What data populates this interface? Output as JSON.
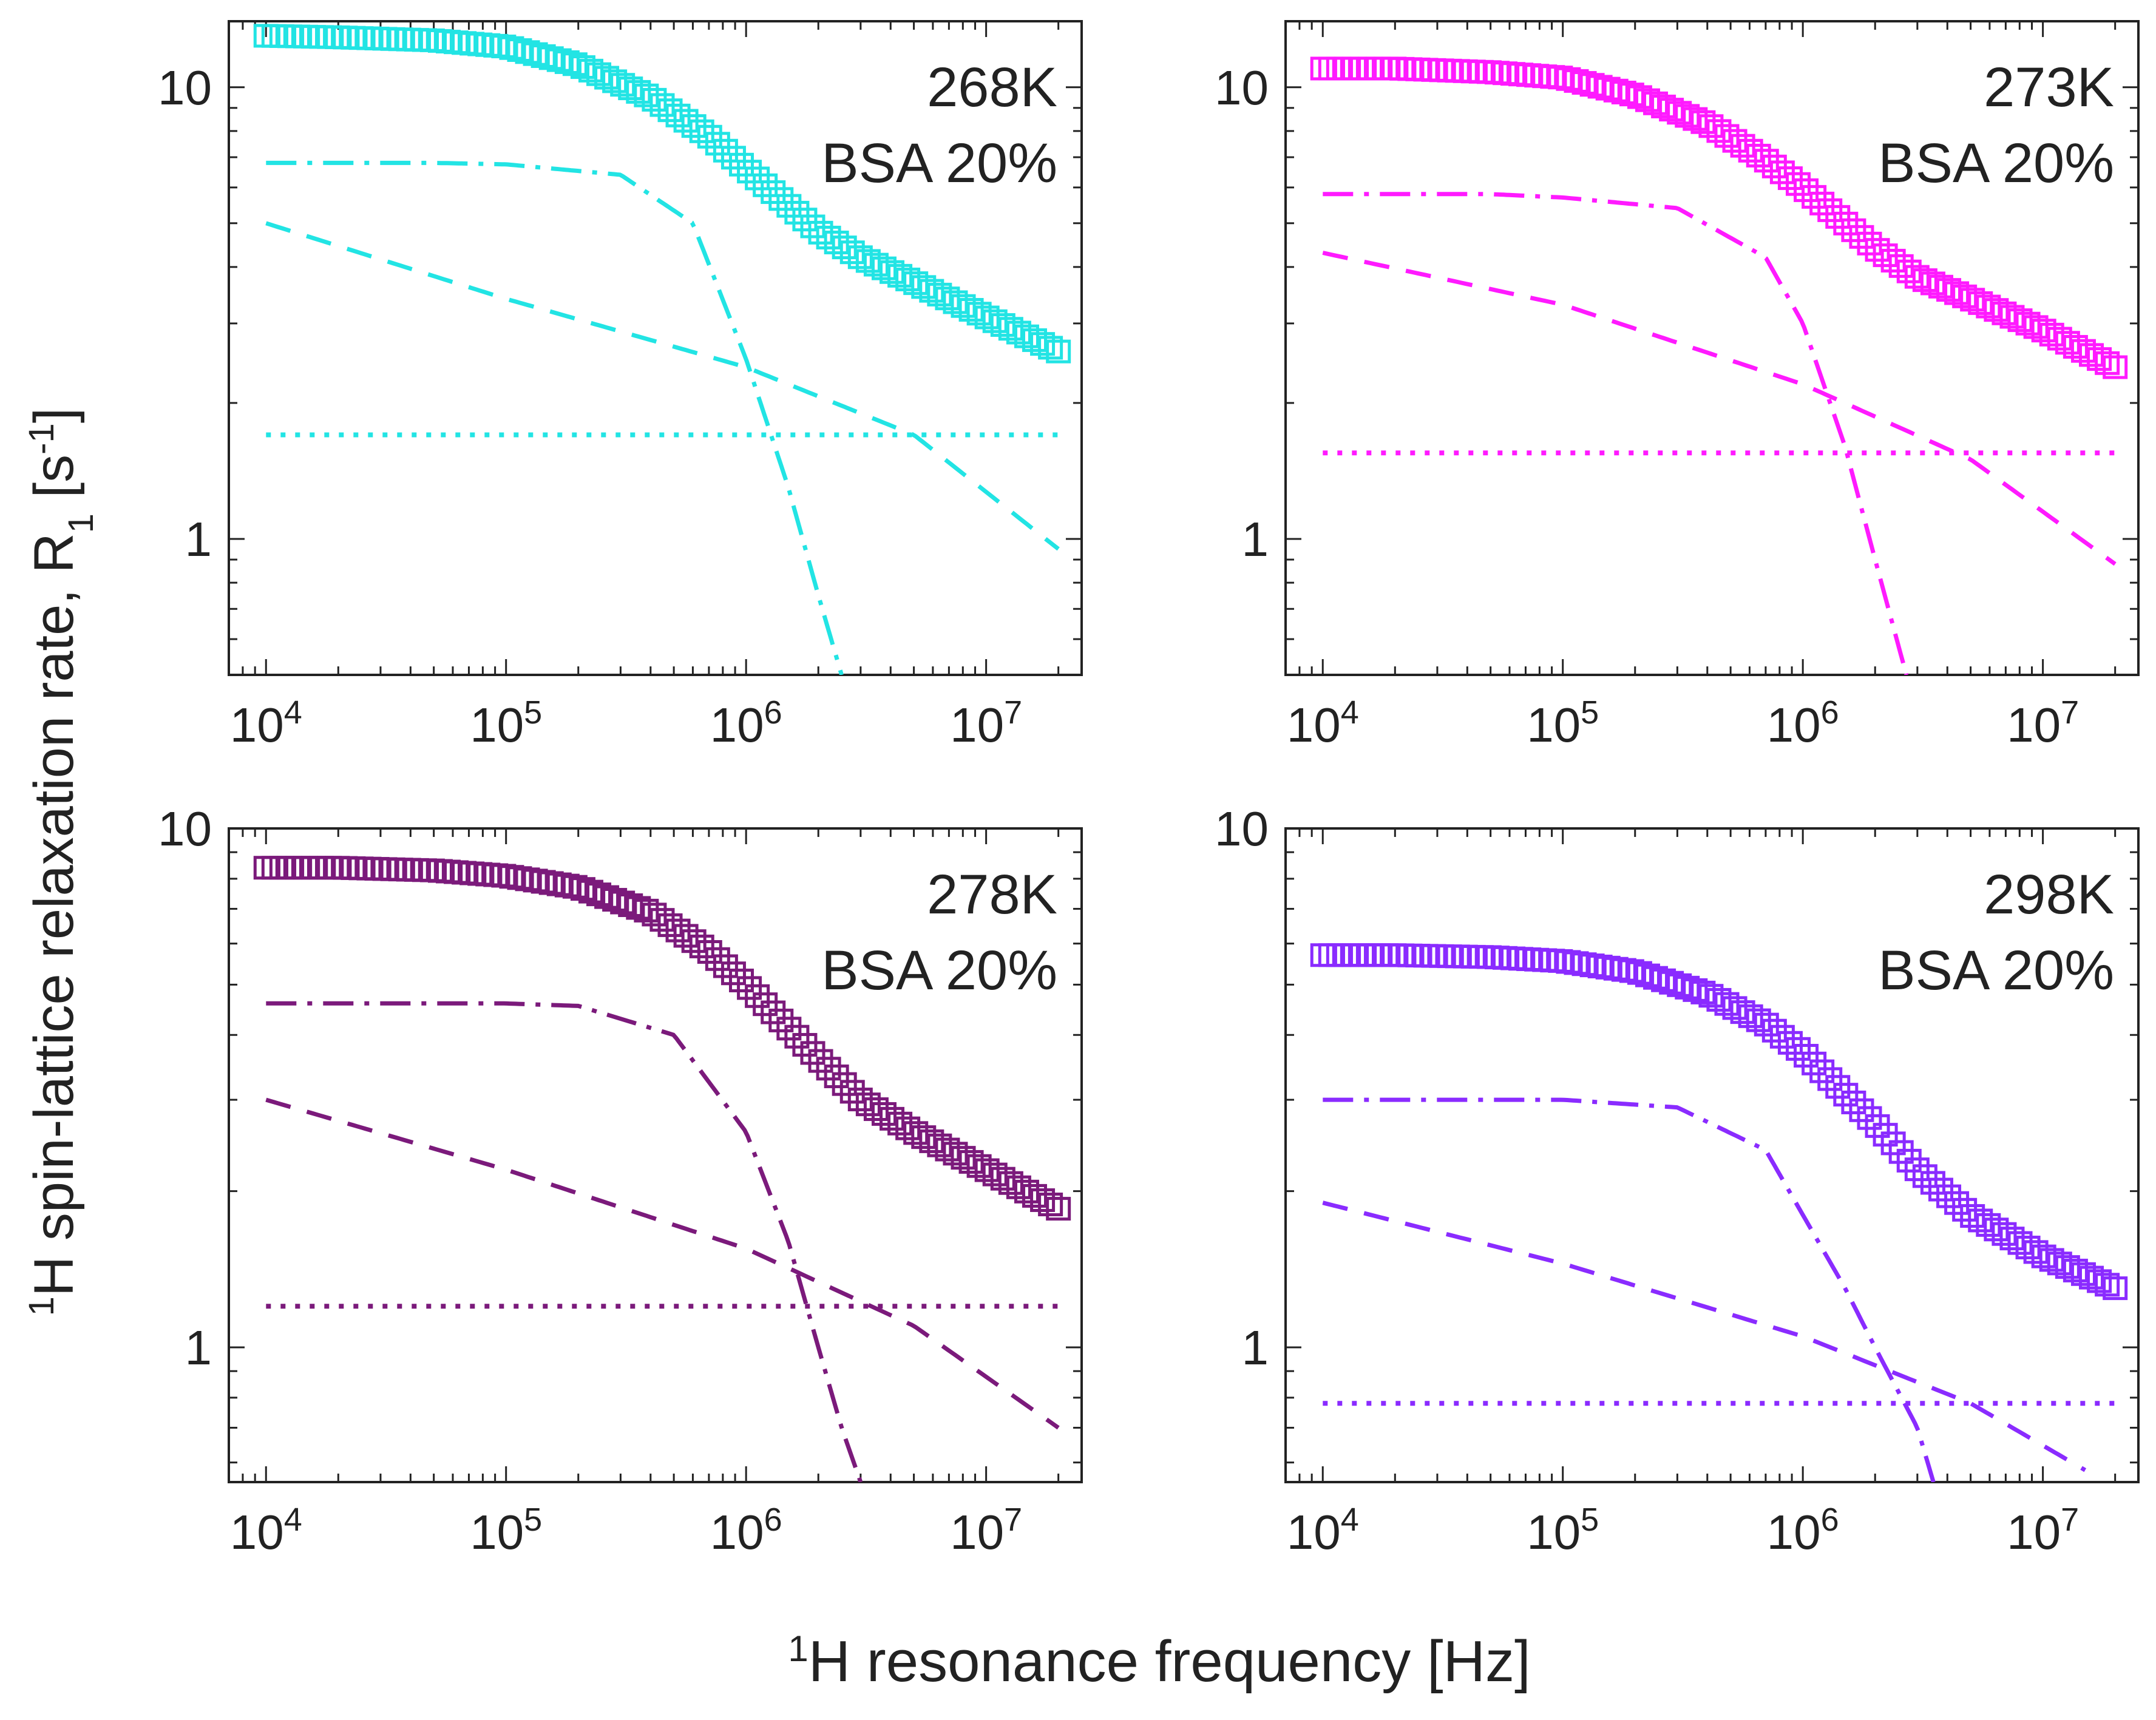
{
  "figure": {
    "ylabel": {
      "sup": "1",
      "main": "H spin-lattice relaxation rate, R",
      "sub": "1",
      "unit_open": " [s",
      "unit_sup": "-1",
      "unit_close": "]"
    },
    "xlabel": {
      "sup": "1",
      "main": "H resonance frequency [Hz]"
    },
    "axis_color": "#222222"
  },
  "chart_data": [
    {
      "type": "line",
      "title": "",
      "xlabel": "",
      "ylabel": "",
      "annotation": [
        "268K",
        "BSA 20%"
      ],
      "color": "#22e4e4",
      "xscale": "log",
      "yscale": "log",
      "xlim": [
        7000,
        25000000
      ],
      "ylim": [
        0.5,
        14
      ],
      "xticks": [
        {
          "base": "10",
          "exp": "4",
          "v": 10000
        },
        {
          "base": "10",
          "exp": "5",
          "v": 100000
        },
        {
          "base": "10",
          "exp": "6",
          "v": 1000000
        },
        {
          "base": "10",
          "exp": "7",
          "v": 10000000
        }
      ],
      "yticks": [
        {
          "label": "1",
          "v": 1
        },
        {
          "label": "10",
          "v": 10
        }
      ],
      "series": [
        {
          "style": "squares",
          "points": [
            [
              10000,
              13.0
            ],
            [
              20000,
              12.9
            ],
            [
              50000,
              12.7
            ],
            [
              100000,
              12.3
            ],
            [
              200000,
              11.2
            ],
            [
              400000,
              9.5
            ],
            [
              700000,
              7.8
            ],
            [
              1000000,
              6.6
            ],
            [
              2000000,
              4.8
            ],
            [
              3000000,
              4.2
            ],
            [
              5000000,
              3.7
            ],
            [
              10000000,
              3.1
            ],
            [
              20000000,
              2.6
            ]
          ]
        },
        {
          "style": "dashdot",
          "points": [
            [
              10000,
              6.8
            ],
            [
              50000,
              6.8
            ],
            [
              100000,
              6.75
            ],
            [
              300000,
              6.4
            ],
            [
              600000,
              5.0
            ],
            [
              1000000,
              2.5
            ],
            [
              1500000,
              1.3
            ],
            [
              2000000,
              0.75
            ],
            [
              2500000,
              0.5
            ]
          ]
        },
        {
          "style": "dashed",
          "points": [
            [
              10000,
              5.0
            ],
            [
              100000,
              3.4
            ],
            [
              1000000,
              2.4
            ],
            [
              5000000,
              1.7
            ],
            [
              20000000,
              0.95
            ]
          ]
        },
        {
          "style": "dotted",
          "points": [
            [
              10000,
              1.7
            ],
            [
              20000000,
              1.7
            ]
          ]
        }
      ]
    },
    {
      "type": "line",
      "title": "",
      "xlabel": "",
      "ylabel": "",
      "annotation": [
        "273K",
        "BSA 20%"
      ],
      "color": "#ff1aff",
      "xscale": "log",
      "yscale": "log",
      "xlim": [
        7000,
        25000000
      ],
      "ylim": [
        0.5,
        14
      ],
      "xticks": [
        {
          "base": "10",
          "exp": "4",
          "v": 10000
        },
        {
          "base": "10",
          "exp": "5",
          "v": 100000
        },
        {
          "base": "10",
          "exp": "6",
          "v": 1000000
        },
        {
          "base": "10",
          "exp": "7",
          "v": 10000000
        }
      ],
      "yticks": [
        {
          "label": "1",
          "v": 1
        },
        {
          "label": "10",
          "v": 10
        }
      ],
      "series": [
        {
          "style": "squares",
          "points": [
            [
              10000,
              11.0
            ],
            [
              20000,
              11.0
            ],
            [
              50000,
              10.8
            ],
            [
              100000,
              10.5
            ],
            [
              200000,
              9.6
            ],
            [
              400000,
              8.3
            ],
            [
              700000,
              6.9
            ],
            [
              1000000,
              6.0
            ],
            [
              2000000,
              4.4
            ],
            [
              3000000,
              3.8
            ],
            [
              5000000,
              3.4
            ],
            [
              10000000,
              2.9
            ],
            [
              20000000,
              2.4
            ]
          ]
        },
        {
          "style": "dashdot",
          "points": [
            [
              10000,
              5.8
            ],
            [
              50000,
              5.8
            ],
            [
              100000,
              5.7
            ],
            [
              300000,
              5.4
            ],
            [
              700000,
              4.2
            ],
            [
              1000000,
              3.0
            ],
            [
              1500000,
              1.6
            ],
            [
              2000000,
              0.9
            ],
            [
              2700000,
              0.5
            ]
          ]
        },
        {
          "style": "dashed",
          "points": [
            [
              10000,
              4.3
            ],
            [
              100000,
              3.3
            ],
            [
              1000000,
              2.2
            ],
            [
              5000000,
              1.5
            ],
            [
              20000000,
              0.88
            ]
          ]
        },
        {
          "style": "dotted",
          "points": [
            [
              10000,
              1.55
            ],
            [
              20000000,
              1.55
            ]
          ]
        }
      ]
    },
    {
      "type": "line",
      "title": "",
      "xlabel": "",
      "ylabel": "",
      "annotation": [
        "278K",
        "BSA 20%"
      ],
      "color": "#7b1a7b",
      "xscale": "log",
      "yscale": "log",
      "xlim": [
        7000,
        25000000
      ],
      "ylim": [
        0.55,
        10
      ],
      "xticks": [
        {
          "base": "10",
          "exp": "4",
          "v": 10000
        },
        {
          "base": "10",
          "exp": "5",
          "v": 100000
        },
        {
          "base": "10",
          "exp": "6",
          "v": 1000000
        },
        {
          "base": "10",
          "exp": "7",
          "v": 10000000
        }
      ],
      "yticks": [
        {
          "label": "1",
          "v": 1
        },
        {
          "label": "10",
          "v": 10
        }
      ],
      "series": [
        {
          "style": "squares",
          "points": [
            [
              10000,
              8.4
            ],
            [
              20000,
              8.4
            ],
            [
              50000,
              8.3
            ],
            [
              100000,
              8.1
            ],
            [
              200000,
              7.7
            ],
            [
              400000,
              6.9
            ],
            [
              700000,
              5.8
            ],
            [
              1000000,
              5.0
            ],
            [
              2000000,
              3.6
            ],
            [
              3000000,
              3.0
            ],
            [
              5000000,
              2.6
            ],
            [
              10000000,
              2.2
            ],
            [
              20000000,
              1.85
            ]
          ]
        },
        {
          "style": "dashdot",
          "points": [
            [
              10000,
              4.6
            ],
            [
              100000,
              4.6
            ],
            [
              200000,
              4.55
            ],
            [
              500000,
              4.0
            ],
            [
              1000000,
              2.6
            ],
            [
              1500000,
              1.6
            ],
            [
              2000000,
              1.0
            ],
            [
              2500000,
              0.7
            ],
            [
              3000000,
              0.55
            ]
          ]
        },
        {
          "style": "dashed",
          "points": [
            [
              10000,
              3.0
            ],
            [
              100000,
              2.2
            ],
            [
              1000000,
              1.55
            ],
            [
              5000000,
              1.1
            ],
            [
              20000000,
              0.7
            ]
          ]
        },
        {
          "style": "dotted",
          "points": [
            [
              10000,
              1.2
            ],
            [
              20000000,
              1.2
            ]
          ]
        }
      ]
    },
    {
      "type": "line",
      "title": "",
      "xlabel": "",
      "ylabel": "",
      "annotation": [
        "298K",
        "BSA 20%"
      ],
      "color": "#8a2bff",
      "xscale": "log",
      "yscale": "log",
      "xlim": [
        7000,
        25000000
      ],
      "ylim": [
        0.55,
        10
      ],
      "xticks": [
        {
          "base": "10",
          "exp": "4",
          "v": 10000
        },
        {
          "base": "10",
          "exp": "5",
          "v": 100000
        },
        {
          "base": "10",
          "exp": "6",
          "v": 1000000
        },
        {
          "base": "10",
          "exp": "7",
          "v": 10000000
        }
      ],
      "yticks": [
        {
          "label": "1",
          "v": 1
        },
        {
          "label": "10",
          "v": 10
        }
      ],
      "series": [
        {
          "style": "squares",
          "points": [
            [
              10000,
              5.7
            ],
            [
              20000,
              5.7
            ],
            [
              50000,
              5.65
            ],
            [
              100000,
              5.55
            ],
            [
              200000,
              5.3
            ],
            [
              400000,
              4.8
            ],
            [
              700000,
              4.2
            ],
            [
              1000000,
              3.7
            ],
            [
              2000000,
              2.7
            ],
            [
              3000000,
              2.2
            ],
            [
              5000000,
              1.8
            ],
            [
              10000000,
              1.5
            ],
            [
              20000000,
              1.3
            ]
          ]
        },
        {
          "style": "dashdot",
          "points": [
            [
              10000,
              3.0
            ],
            [
              100000,
              3.0
            ],
            [
              300000,
              2.9
            ],
            [
              700000,
              2.4
            ],
            [
              1000000,
              1.8
            ],
            [
              1500000,
              1.3
            ],
            [
              2000000,
              1.0
            ],
            [
              3000000,
              0.7
            ],
            [
              3500000,
              0.55
            ]
          ]
        },
        {
          "style": "dashed",
          "points": [
            [
              10000,
              1.9
            ],
            [
              100000,
              1.45
            ],
            [
              1000000,
              1.05
            ],
            [
              5000000,
              0.78
            ],
            [
              15000000,
              0.58
            ]
          ]
        },
        {
          "style": "dotted",
          "points": [
            [
              10000,
              0.78
            ],
            [
              20000000,
              0.78
            ]
          ]
        }
      ]
    }
  ]
}
